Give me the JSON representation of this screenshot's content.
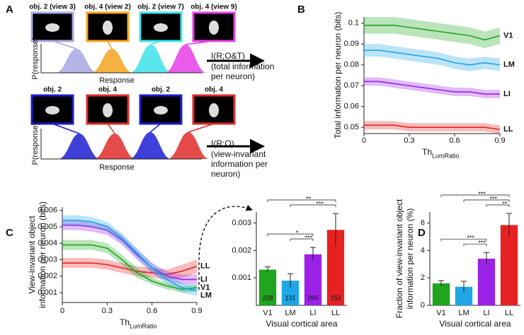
{
  "panel_labels": [
    "A",
    "B",
    "C",
    "D"
  ],
  "diagram": {
    "top": {
      "views": [
        "obj. 2 (view 3)",
        "obj. 4 (view 2)",
        "obj. 2 (view 7)",
        "obj. 4 (view 9)"
      ],
      "y_axis": "P(response)",
      "x_axis": "Response",
      "measure": "I(R;O&T)",
      "description": [
        "(total information",
        "per neuron)"
      ]
    },
    "bottom": {
      "views": [
        "obj. 2",
        "obj. 4",
        "obj. 2",
        "obj. 4"
      ],
      "y_axis": "P(response)",
      "x_axis": "Response",
      "measure": "I(R;O)",
      "description": [
        "(view-invariant",
        "information per",
        "neuron)"
      ]
    }
  },
  "chart_data": [
    {
      "type": "line",
      "ylabel": [
        "Total information per neuron (bits)"
      ],
      "xlabel": "Th",
      "xlabel_sub": "LumRatio",
      "x": [
        0,
        0.1,
        0.2,
        0.3,
        0.4,
        0.5,
        0.6,
        0.7,
        0.8,
        0.9
      ],
      "xlim": [
        0,
        0.9
      ],
      "xticks": [
        0,
        0.3,
        0.6,
        0.9
      ],
      "ylim": [
        0.047,
        0.103
      ],
      "yticks": [
        0.05,
        0.06,
        0.07,
        0.08,
        0.09,
        0.1
      ],
      "series": [
        {
          "name": "V1",
          "color": "#1fa51f",
          "values": [
            0.099,
            0.099,
            0.099,
            0.098,
            0.097,
            0.096,
            0.095,
            0.094,
            0.092,
            0.094
          ],
          "errors": [
            0.004,
            0.004,
            0.004,
            0.004,
            0.004,
            0.004,
            0.004,
            0.004,
            0.004,
            0.004
          ]
        },
        {
          "name": "LM",
          "color": "#1fa6e6",
          "values": [
            0.087,
            0.087,
            0.086,
            0.085,
            0.084,
            0.083,
            0.081,
            0.08,
            0.081,
            0.08
          ],
          "errors": [
            0.003,
            0.003,
            0.003,
            0.003,
            0.003,
            0.003,
            0.003,
            0.003,
            0.003,
            0.003
          ]
        },
        {
          "name": "LI",
          "color": "#9b22e6",
          "values": [
            0.072,
            0.072,
            0.071,
            0.07,
            0.069,
            0.068,
            0.067,
            0.067,
            0.066,
            0.066
          ],
          "errors": [
            0.002,
            0.002,
            0.002,
            0.002,
            0.002,
            0.002,
            0.002,
            0.002,
            0.002,
            0.002
          ]
        },
        {
          "name": "LL",
          "color": "#e62222",
          "values": [
            0.051,
            0.051,
            0.051,
            0.05,
            0.05,
            0.05,
            0.05,
            0.05,
            0.05,
            0.049
          ],
          "errors": [
            0.002,
            0.002,
            0.002,
            0.002,
            0.002,
            0.002,
            0.002,
            0.002,
            0.002,
            0.002
          ]
        }
      ]
    },
    {
      "type": "line",
      "ylabel": [
        "View-invariant object",
        "information per neuron (bits)"
      ],
      "xlabel": "Th",
      "xlabel_sub": "LumRatio",
      "x": [
        0,
        0.1,
        0.2,
        0.3,
        0.4,
        0.5,
        0.6,
        0.7,
        0.8,
        0.9
      ],
      "xlim": [
        0,
        0.9
      ],
      "xticks": [
        0,
        0.3,
        0.6,
        0.9
      ],
      "ylim": [
        0.0004,
        0.0062
      ],
      "yticks": [
        0.001,
        0.002,
        0.003,
        0.004,
        0.005,
        0.006
      ],
      "series": [
        {
          "name": "LL",
          "color": "#e62222",
          "values": [
            0.0028,
            0.0028,
            0.0028,
            0.0027,
            0.0025,
            0.0023,
            0.0022,
            0.0021,
            0.0023,
            0.0026
          ],
          "errors": [
            0.0003,
            0.0003,
            0.0003,
            0.0003,
            0.0003,
            0.0003,
            0.0003,
            0.0003,
            0.0004,
            0.0004
          ]
        },
        {
          "name": "LI",
          "color": "#9b22e6",
          "values": [
            0.0051,
            0.0051,
            0.005,
            0.0048,
            0.0042,
            0.0033,
            0.0025,
            0.002,
            0.0018,
            0.0018
          ],
          "errors": [
            0.0003,
            0.0003,
            0.0003,
            0.0003,
            0.0003,
            0.0003,
            0.0003,
            0.0003,
            0.0003,
            0.0003
          ]
        },
        {
          "name": "V1",
          "color": "#1fa51f",
          "values": [
            0.0039,
            0.0039,
            0.0039,
            0.0037,
            0.003,
            0.0022,
            0.0017,
            0.0014,
            0.0012,
            0.0013
          ],
          "errors": [
            0.0003,
            0.0003,
            0.0003,
            0.0003,
            0.0003,
            0.0003,
            0.0002,
            0.0002,
            0.0002,
            0.0002
          ]
        },
        {
          "name": "LM",
          "color": "#1fa6e6",
          "values": [
            0.0054,
            0.0054,
            0.0053,
            0.005,
            0.0043,
            0.0034,
            0.0025,
            0.0018,
            0.0013,
            0.0011
          ],
          "errors": [
            0.0003,
            0.0003,
            0.0003,
            0.0003,
            0.0003,
            0.0003,
            0.0003,
            0.0003,
            0.0003,
            0.0003
          ]
        }
      ]
    },
    {
      "type": "bar",
      "categories": [
        "V1",
        "LM",
        "LI",
        "LL"
      ],
      "values": [
        0.0013,
        0.0009,
        0.00186,
        0.00275
      ],
      "errors": [
        0.0001,
        0.00025,
        0.00025,
        0.0006
      ],
      "colors": [
        "#1fa51f",
        "#1fa6e6",
        "#9b22e6",
        "#e62222"
      ],
      "counts": [
        228,
        131,
        260,
        152
      ],
      "ylim": [
        0,
        0.0034
      ],
      "yticks": [
        0.001,
        0.002,
        0.003
      ],
      "xlabel": "Visual cortical area",
      "significance": [
        {
          "pair": [
            "LM",
            "LI"
          ],
          "label": "***"
        },
        {
          "pair": [
            "V1",
            "LI"
          ],
          "label": "*"
        },
        {
          "pair": [
            "LM",
            "LL"
          ],
          "label": "***"
        },
        {
          "pair": [
            "V1",
            "LL"
          ],
          "label": "**"
        }
      ]
    },
    {
      "type": "bar",
      "ylabel": [
        "Fraction of view-invariant object",
        "information per neuron (%)"
      ],
      "categories": [
        "V1",
        "LM",
        "LI",
        "LL"
      ],
      "values": [
        1.6,
        1.35,
        3.4,
        5.85
      ],
      "errors": [
        0.2,
        0.4,
        0.45,
        0.85
      ],
      "colors": [
        "#1fa51f",
        "#1fa6e6",
        "#9b22e6",
        "#e62222"
      ],
      "ylim": [
        0,
        6.8
      ],
      "yticks": [
        0,
        2,
        4,
        6
      ],
      "xlabel": "Visual cortical area",
      "significance": [
        {
          "pair": [
            "LM",
            "LI"
          ],
          "label": "***"
        },
        {
          "pair": [
            "V1",
            "LI"
          ],
          "label": "***"
        },
        {
          "pair": [
            "LI",
            "LL"
          ],
          "label": "**"
        },
        {
          "pair": [
            "LM",
            "LL"
          ],
          "label": "***"
        },
        {
          "pair": [
            "V1",
            "LL"
          ],
          "label": "***"
        }
      ]
    }
  ]
}
